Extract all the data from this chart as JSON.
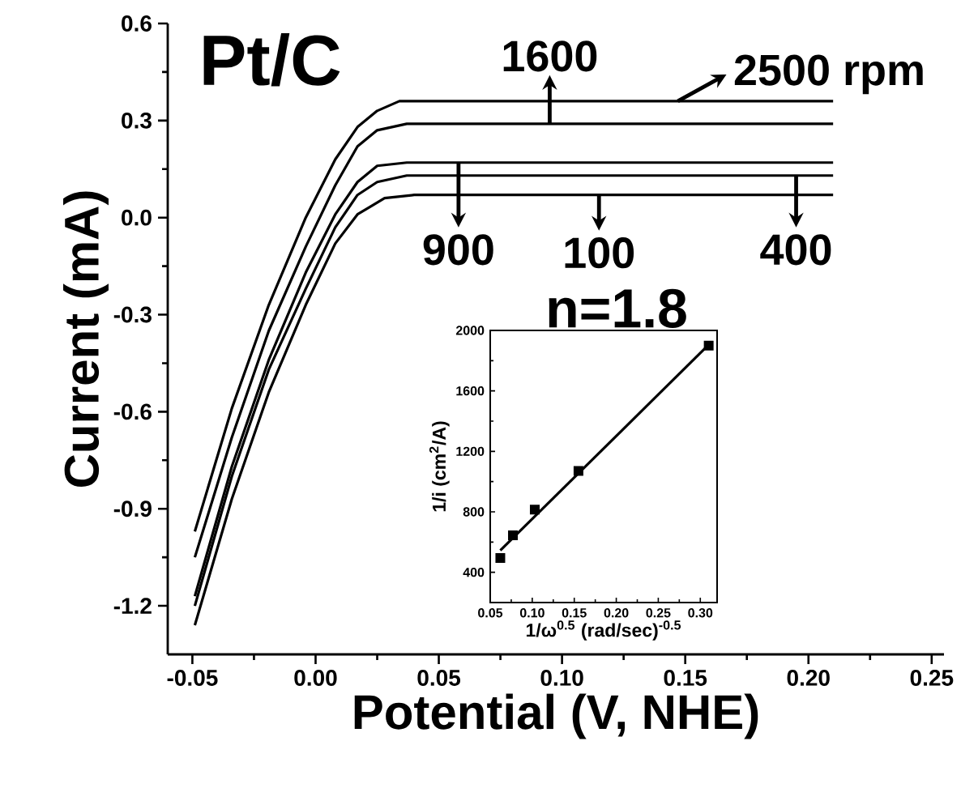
{
  "chart_data": [
    {
      "type": "line",
      "title": "Pt/C",
      "xlabel": "Potential (V, NHE)",
      "ylabel": "Current (mA)",
      "xlim": [
        -0.06,
        0.255
      ],
      "ylim": [
        -1.35,
        0.6
      ],
      "xticks": [
        {
          "value": -0.05,
          "label": "-0.05"
        },
        {
          "value": 0,
          "label": "0.00"
        },
        {
          "value": 0.05,
          "label": "0.05"
        },
        {
          "value": 0.1,
          "label": "0.10"
        },
        {
          "value": 0.15,
          "label": "0.15"
        },
        {
          "value": 0.2,
          "label": "0.20"
        },
        {
          "value": 0.25,
          "label": "0.25"
        }
      ],
      "yticks": [
        {
          "value": -1.2,
          "label": "-1.2"
        },
        {
          "value": -0.9,
          "label": "-0.9"
        },
        {
          "value": -0.6,
          "label": "-0.6"
        },
        {
          "value": -0.3,
          "label": "-0.3"
        },
        {
          "value": 0,
          "label": "0.0"
        },
        {
          "value": 0.3,
          "label": "0.3"
        },
        {
          "value": 0.6,
          "label": "0.6"
        }
      ],
      "marker": "none",
      "line_style": "solid",
      "series": [
        {
          "color": "#000000",
          "x": [
            -0.049,
            -0.034,
            -0.019,
            -0.004,
            0.008,
            0.017,
            0.025,
            0.034,
            0.21
          ],
          "values": [
            -0.97,
            -0.59,
            -0.27,
            0.0,
            0.18,
            0.28,
            0.33,
            0.36,
            0.36
          ]
        },
        {
          "color": "#000000",
          "x": [
            -0.049,
            -0.034,
            -0.019,
            -0.004,
            0.008,
            0.017,
            0.025,
            0.037,
            0.21
          ],
          "values": [
            -1.05,
            -0.68,
            -0.35,
            -0.09,
            0.1,
            0.22,
            0.27,
            0.29,
            0.29
          ]
        },
        {
          "color": "#000000",
          "x": [
            -0.049,
            -0.034,
            -0.019,
            -0.004,
            0.008,
            0.017,
            0.025,
            0.037,
            0.21
          ],
          "values": [
            -1.17,
            -0.77,
            -0.44,
            -0.17,
            0.01,
            0.11,
            0.16,
            0.17,
            0.17
          ]
        },
        {
          "color": "#000000",
          "x": [
            -0.049,
            -0.034,
            -0.019,
            -0.004,
            0.008,
            0.017,
            0.025,
            0.037,
            0.21
          ],
          "values": [
            -1.2,
            -0.8,
            -0.47,
            -0.22,
            -0.03,
            0.07,
            0.11,
            0.13,
            0.13
          ]
        },
        {
          "color": "#000000",
          "x": [
            -0.049,
            -0.034,
            -0.019,
            -0.004,
            0.008,
            0.017,
            0.028,
            0.04,
            0.21
          ],
          "values": [
            -1.26,
            -0.87,
            -0.54,
            -0.27,
            -0.08,
            0.01,
            0.06,
            0.07,
            0.07
          ]
        }
      ],
      "annotations": [
        {
          "text": "2500 rpm",
          "x": 0.147,
          "y": 0.36
        },
        {
          "text": "1600",
          "x": 0.095,
          "y": 0.29
        },
        {
          "text": "900",
          "x": 0.058,
          "y": 0.17
        },
        {
          "text": "100",
          "x": 0.115,
          "y": 0.07
        },
        {
          "text": "400",
          "x": 0.195,
          "y": 0.13
        }
      ]
    },
    {
      "type": "scatter",
      "title": "n=1.8",
      "xlabel": "1/ω$^{0.5}$ (rad/sec)$^{-0.5}$",
      "ylabel": "1/i (cm$^{2}$/A)",
      "xlim": [
        0.05,
        0.32
      ],
      "ylim": [
        200,
        2000
      ],
      "xticks": [
        {
          "value": 0.05,
          "label": "0.05"
        },
        {
          "value": 0.1,
          "label": "0.10"
        },
        {
          "value": 0.15,
          "label": "0.15"
        },
        {
          "value": 0.2,
          "label": "0.20"
        },
        {
          "value": 0.25,
          "label": "0.25"
        },
        {
          "value": 0.3,
          "label": "0.30"
        }
      ],
      "yticks": [
        400,
        800,
        1200,
        1600,
        2000
      ],
      "marker": "square",
      "series": [
        {
          "color": "#000000",
          "x": [
            0.062,
            0.077,
            0.103,
            0.155,
            0.31
          ],
          "values": [
            495,
            645,
            815,
            1070,
            1900
          ]
        },
        {
          "type": "line",
          "marker": "none",
          "color": "#000000",
          "x": [
            0.062,
            0.31
          ],
          "values": [
            545,
            1905
          ]
        }
      ]
    }
  ]
}
